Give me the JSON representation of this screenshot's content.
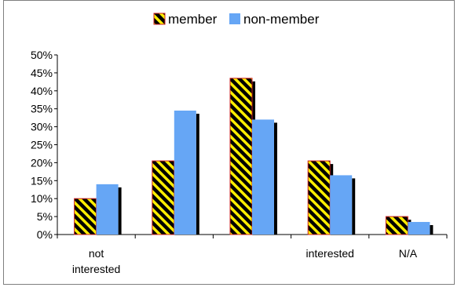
{
  "chart_data": {
    "type": "bar",
    "categories": [
      "not interested",
      "",
      "",
      "interested",
      "N/A"
    ],
    "category_label_lines": [
      [
        "not",
        "interested"
      ],
      [],
      [],
      [
        "interested"
      ],
      [
        "N/A"
      ]
    ],
    "series": [
      {
        "name": "member",
        "values": [
          10.0,
          20.5,
          43.5,
          20.5,
          5.0
        ],
        "fill": "hatched-yellow-black",
        "border": "#cc2222"
      },
      {
        "name": "non-member",
        "values": [
          14.0,
          34.5,
          32.0,
          16.5,
          3.5
        ],
        "fill": "#66a6f5"
      }
    ],
    "ylim": [
      0,
      50
    ],
    "yticks": [
      0,
      5,
      10,
      15,
      20,
      25,
      30,
      35,
      40,
      45,
      50
    ],
    "ytick_labels": [
      "0%",
      "5%",
      "10%",
      "15%",
      "20%",
      "25%",
      "30%",
      "35%",
      "40%",
      "45%",
      "50%"
    ],
    "legend_position": "top",
    "grid": false,
    "title": "",
    "xlabel": "",
    "ylabel": "",
    "colors": {
      "hatch_yellow": "#ffee00",
      "hatch_black": "#000000",
      "member_border": "#cc2222",
      "non_member": "#66a6f5",
      "shadow": "#000000"
    }
  }
}
